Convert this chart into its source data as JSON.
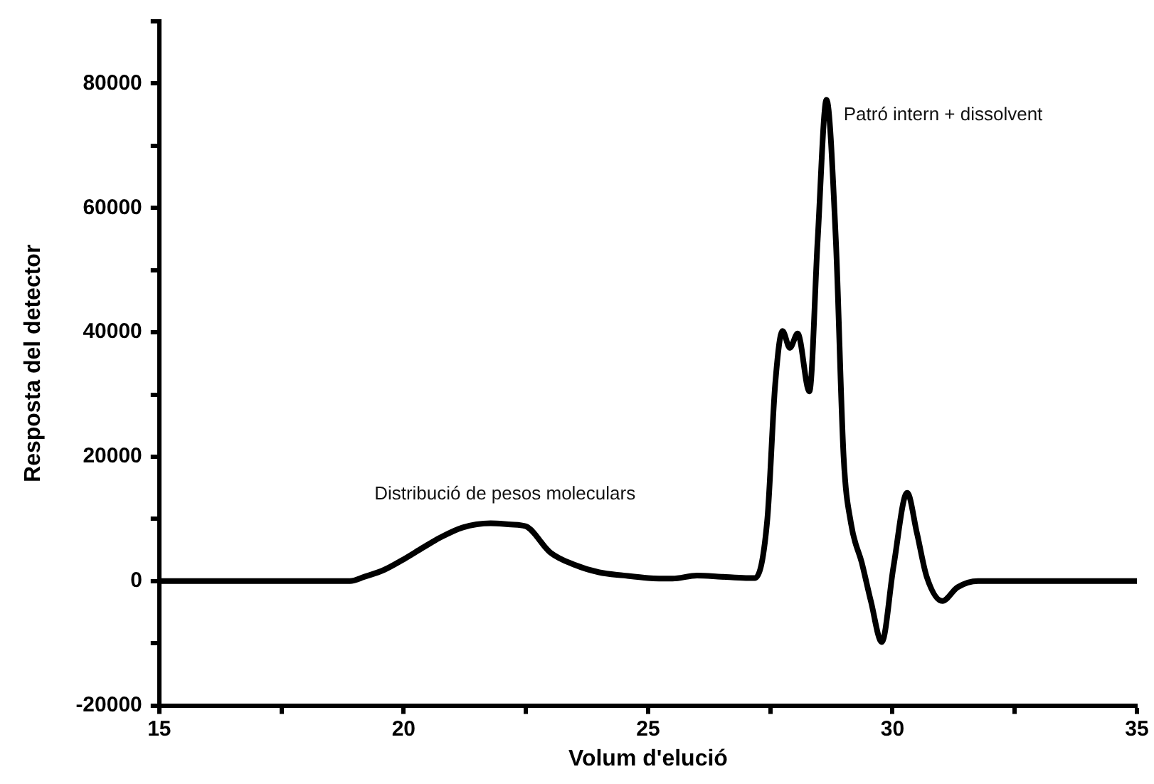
{
  "chart_data": {
    "type": "line",
    "xlabel": "Volum d'elució",
    "ylabel": "Resposta del detector",
    "xlim": [
      15,
      35
    ],
    "xticks": [
      15,
      {
        "value": 17.5,
        "label": null
      },
      20,
      {
        "value": 22.5,
        "label": null
      },
      25,
      {
        "value": 27.5,
        "label": null
      },
      30,
      {
        "value": 32.5,
        "label": null
      },
      35
    ],
    "ylim": [
      -20000,
      90000
    ],
    "yticks": [
      -20000,
      {
        "value": -10000,
        "label": null
      },
      0,
      {
        "value": 10000,
        "label": null
      },
      20000,
      {
        "value": 30000,
        "label": null
      },
      40000,
      {
        "value": 50000,
        "label": null
      },
      60000,
      {
        "value": 70000,
        "label": null
      },
      80000,
      {
        "value": 90000,
        "label": null
      }
    ],
    "grid": false,
    "legend": false,
    "marker": "none",
    "line_style": "solid",
    "series": [
      {
        "color": "#000000",
        "x": [
          15,
          16,
          17,
          18,
          18.9,
          19.2,
          19.6,
          20,
          20.4,
          20.75,
          21.2,
          21.78,
          22.2,
          22.5,
          23,
          23.5,
          24,
          24.5,
          25,
          25.5,
          26,
          26.5,
          27,
          27.19,
          27.44,
          27.6,
          27.75,
          27.9,
          28.06,
          28.3,
          28.47,
          28.65,
          28.84,
          29,
          29.15,
          29.37,
          29.56,
          29.78,
          30.02,
          30.3,
          30.5,
          30.7,
          31.02,
          31.33,
          31.75,
          33,
          35
        ],
        "values": [
          0,
          0,
          0,
          0,
          0,
          700,
          1800,
          3500,
          5400,
          7000,
          8600,
          9300,
          9100,
          8800,
          4600,
          2600,
          1400,
          900,
          500,
          400,
          900,
          700,
          500,
          500,
          10000,
          31600,
          40200,
          37500,
          39800,
          30500,
          55000,
          77400,
          55000,
          20000,
          9300,
          3000,
          -3300,
          -9800,
          2300,
          14200,
          7700,
          700,
          -3200,
          -1000,
          0,
          0,
          0
        ]
      }
    ],
    "annotations": [
      {
        "text": "Distribució de pesos moleculars",
        "x": 21.78,
        "y": 9300
      },
      {
        "text": "Patró intern + dissolvent",
        "x": 28.65,
        "y": 77400
      }
    ]
  }
}
